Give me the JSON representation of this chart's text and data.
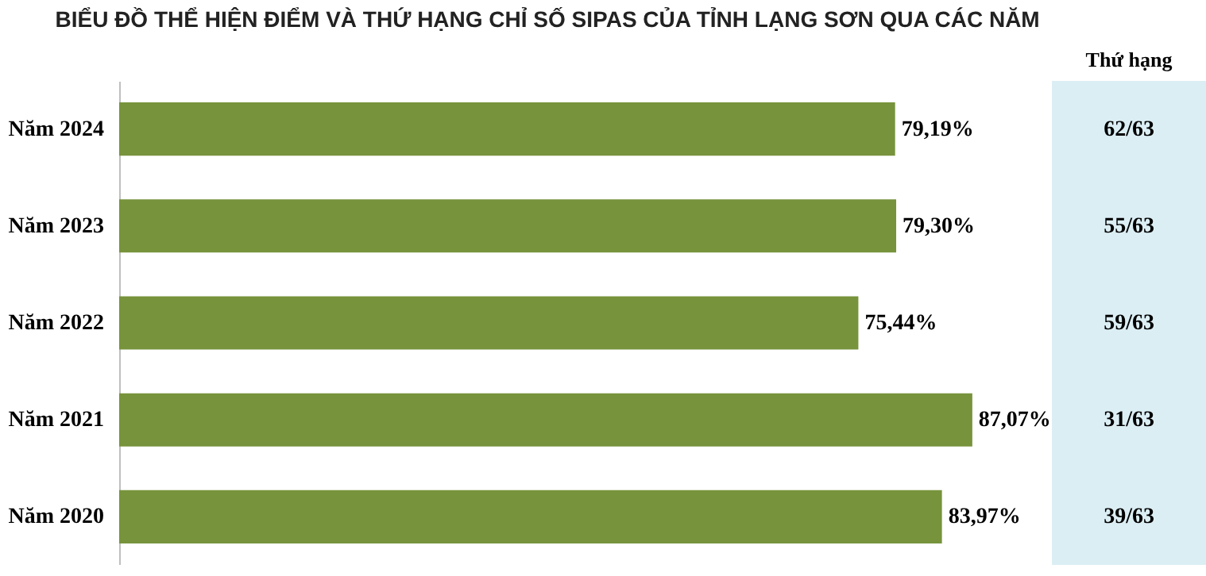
{
  "chart_data": {
    "type": "bar",
    "orientation": "horizontal",
    "title": "BIỂU ĐỒ THỂ HIỆN ĐIỂM VÀ THỨ HẠNG CHỈ SỐ SIPAS CỦA TỈNH LẠNG SƠN QUA CÁC NĂM",
    "categories": [
      "Năm 2024",
      "Năm 2023",
      "Năm 2022",
      "Năm 2021",
      "Năm 2020"
    ],
    "values": [
      79.19,
      79.3,
      75.44,
      87.07,
      83.97
    ],
    "value_labels": [
      "79,19%",
      "79,30%",
      "75,44%",
      "87,07%",
      "83,97%"
    ],
    "color": "#77933c",
    "annotations": [
      "Thứ hạng",
      "62/63",
      "55/63",
      "59/63",
      "31/63",
      "39/63"
    ]
  }
}
